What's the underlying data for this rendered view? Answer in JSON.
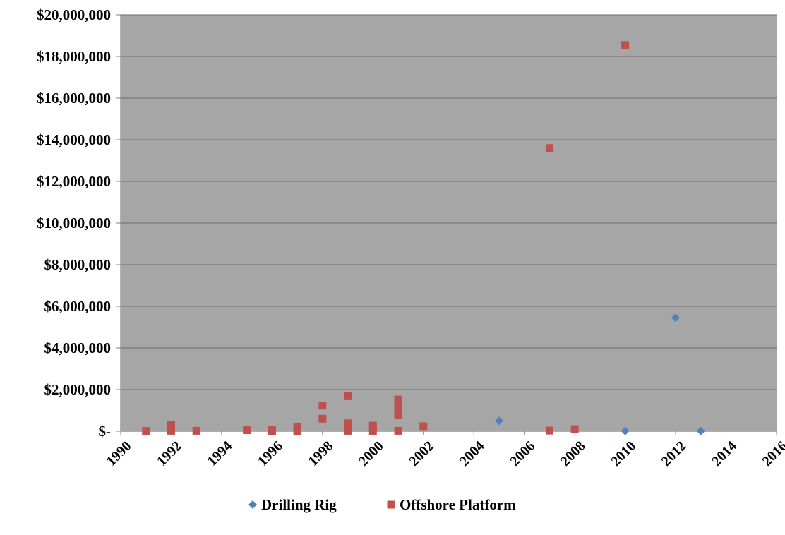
{
  "chart_data": {
    "type": "scatter",
    "title": "",
    "xlabel": "",
    "ylabel": "",
    "xlim": [
      1990,
      2016
    ],
    "ylim": [
      0,
      20000000
    ],
    "x_ticks": [
      "1990",
      "1992",
      "1994",
      "1996",
      "1998",
      "2000",
      "2002",
      "2004",
      "2006",
      "2008",
      "2010",
      "2012",
      "2014",
      "2016"
    ],
    "y_ticks": [
      "$-",
      "$2,000,000",
      "$4,000,000",
      "$6,000,000",
      "$8,000,000",
      "$10,000,000",
      "$12,000,000",
      "$14,000,000",
      "$16,000,000",
      "$18,000,000",
      "$20,000,000"
    ],
    "grid": true,
    "legend_position": "bottom",
    "plot_background": "#a6a6a6",
    "series": [
      {
        "name": "Drilling Rig",
        "marker": "diamond",
        "color": "#4f81bd",
        "points": [
          {
            "x": 2005,
            "y": 500000
          },
          {
            "x": 2010,
            "y": 10000
          },
          {
            "x": 2012,
            "y": 5450000
          },
          {
            "x": 2013,
            "y": 10000
          }
        ]
      },
      {
        "name": "Offshore Platform",
        "marker": "square",
        "color": "#c0504d",
        "points": [
          {
            "x": 1991,
            "y": 10000
          },
          {
            "x": 1992,
            "y": 300000
          },
          {
            "x": 1992,
            "y": 150000
          },
          {
            "x": 1992,
            "y": 20000
          },
          {
            "x": 1993,
            "y": 20000
          },
          {
            "x": 1995,
            "y": 50000
          },
          {
            "x": 1996,
            "y": 50000
          },
          {
            "x": 1996,
            "y": 10000
          },
          {
            "x": 1997,
            "y": 220000
          },
          {
            "x": 1997,
            "y": 100000
          },
          {
            "x": 1997,
            "y": 10000
          },
          {
            "x": 1998,
            "y": 1230000
          },
          {
            "x": 1998,
            "y": 600000
          },
          {
            "x": 1999,
            "y": 1680000
          },
          {
            "x": 1999,
            "y": 380000
          },
          {
            "x": 1999,
            "y": 250000
          },
          {
            "x": 1999,
            "y": 100000
          },
          {
            "x": 1999,
            "y": 20000
          },
          {
            "x": 2000,
            "y": 270000
          },
          {
            "x": 2000,
            "y": 150000
          },
          {
            "x": 2000,
            "y": 10000
          },
          {
            "x": 2001,
            "y": 1520000
          },
          {
            "x": 2001,
            "y": 1280000
          },
          {
            "x": 2001,
            "y": 1000000
          },
          {
            "x": 2001,
            "y": 760000
          },
          {
            "x": 2001,
            "y": 20000
          },
          {
            "x": 2002,
            "y": 240000
          },
          {
            "x": 2007,
            "y": 13600000
          },
          {
            "x": 2007,
            "y": 30000
          },
          {
            "x": 2008,
            "y": 100000
          },
          {
            "x": 2010,
            "y": 18550000
          }
        ]
      }
    ]
  }
}
